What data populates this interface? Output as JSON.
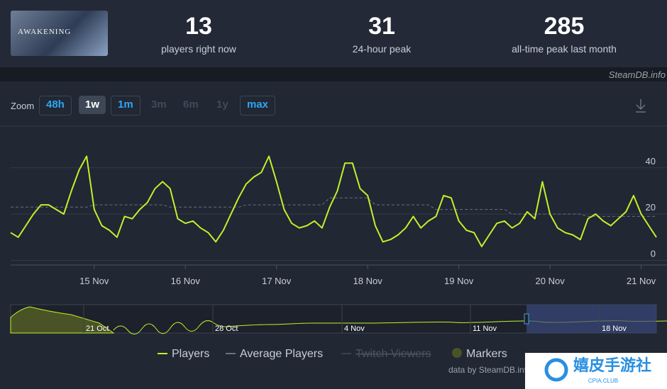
{
  "header": {
    "game_art_text": "AWAKENING",
    "stats": [
      {
        "value": "13",
        "label": "players right now"
      },
      {
        "value": "31",
        "label": "24-hour peak"
      },
      {
        "value": "285",
        "label": "all-time peak last month"
      }
    ],
    "credit": "SteamDB.info"
  },
  "zoom": {
    "label": "Zoom",
    "buttons": [
      "48h",
      "1w",
      "1m",
      "3m",
      "6m",
      "1y",
      "max"
    ]
  },
  "chart_data": {
    "type": "line",
    "categories": [
      null,
      null,
      null,
      null,
      null,
      null,
      null,
      null,
      null,
      null,
      null,
      "15 Nov",
      null,
      null,
      null,
      null,
      null,
      null,
      null,
      null,
      null,
      null,
      null,
      "16 Nov",
      null,
      null,
      null,
      null,
      null,
      null,
      null,
      null,
      null,
      null,
      null,
      "17 Nov",
      null,
      null,
      null,
      null,
      null,
      null,
      null,
      null,
      null,
      null,
      null,
      "18 Nov",
      null,
      null,
      null,
      null,
      null,
      null,
      null,
      null,
      null,
      null,
      null,
      "19 Nov",
      null,
      null,
      null,
      null,
      null,
      null,
      null,
      null,
      null,
      null,
      null,
      "20 Nov",
      null,
      null,
      null,
      null,
      null,
      null,
      null,
      null,
      null,
      null,
      null,
      "21 Nov",
      null,
      null
    ],
    "series": [
      {
        "name": "Players",
        "color": "#bff22b",
        "dash": false,
        "values": [
          12,
          10,
          15,
          20,
          24,
          24,
          22,
          20,
          30,
          39,
          45,
          22,
          15,
          13,
          10,
          19,
          18,
          22,
          25,
          31,
          34,
          31,
          18,
          16,
          17,
          14,
          12,
          8,
          13,
          20,
          27,
          33,
          36,
          38,
          45,
          34,
          22,
          16,
          14,
          15,
          17,
          14,
          23,
          30,
          42,
          42,
          31,
          28,
          15,
          8,
          9,
          11,
          14,
          19,
          14,
          17,
          19,
          28,
          27,
          17,
          13,
          12,
          6,
          11,
          16,
          17,
          14,
          16,
          21,
          18,
          34,
          20,
          14,
          12,
          11,
          9,
          18,
          20,
          17,
          15,
          18,
          21,
          28,
          20,
          15,
          10
        ]
      },
      {
        "name": "Average Players",
        "color": "#6b7280",
        "dash": true,
        "values": [
          23,
          23,
          23,
          23,
          23,
          23,
          23,
          23,
          23,
          23,
          23,
          24,
          24,
          24,
          24,
          24,
          24,
          24,
          24,
          24,
          24,
          23,
          23,
          23,
          23,
          23,
          23,
          23,
          23,
          23,
          23,
          24,
          24,
          24,
          24,
          24,
          24,
          24,
          24,
          24,
          24,
          24,
          27,
          27,
          27,
          27,
          27,
          27,
          24,
          24,
          24,
          24,
          24,
          24,
          24,
          24,
          22,
          22,
          22,
          22,
          22,
          22,
          22,
          22,
          22,
          22,
          20,
          20,
          20,
          20,
          20,
          20,
          20,
          20,
          20,
          20,
          19,
          19,
          19,
          19,
          19,
          19,
          19,
          19,
          19,
          19
        ]
      }
    ],
    "ylim": [
      -2,
      58
    ],
    "yticks": [
      0,
      20,
      40
    ],
    "grid": true,
    "legend_inactive": [
      "Twitch Viewers",
      "Markers"
    ],
    "navigator_labels": [
      "21 Oct",
      "28 Oct",
      "4 Nov",
      "11 Nov",
      "18 Nov"
    ],
    "source": "data by SteamDB.info"
  },
  "watermark": {
    "title": "嬉皮手游社",
    "subtitle": "CPIA.CLUB"
  }
}
